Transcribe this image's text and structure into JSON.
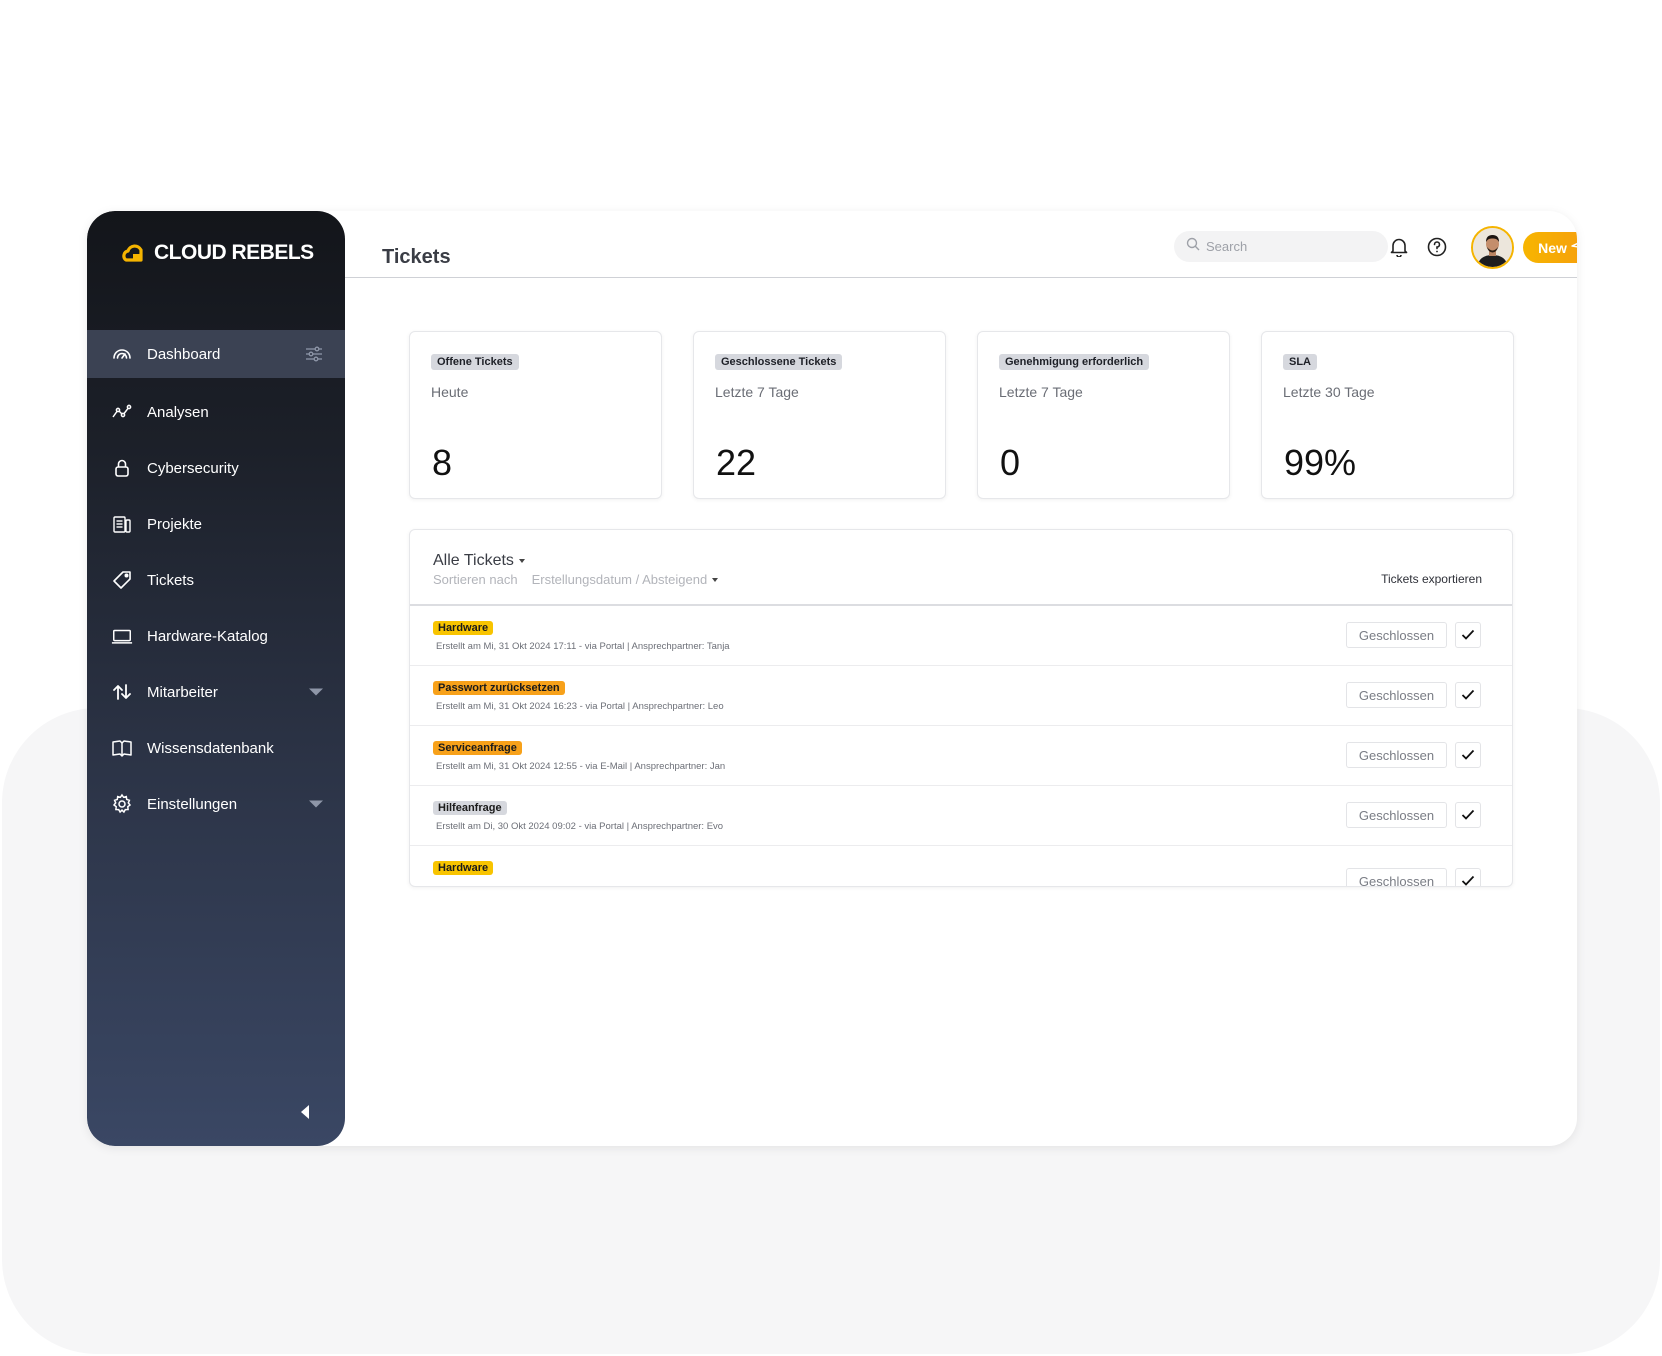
{
  "brand": {
    "name": "CLOUD REBELS",
    "accent": "#f5b400"
  },
  "page": {
    "title": "Tickets"
  },
  "header": {
    "search_placeholder": "Search",
    "new_label": "New"
  },
  "sidebar": {
    "items": [
      {
        "label": "Dashboard",
        "icon": "gauge-icon",
        "active": true
      },
      {
        "label": "Analysen",
        "icon": "chart-line-icon"
      },
      {
        "label": "Cybersecurity",
        "icon": "lock-icon"
      },
      {
        "label": "Projekte",
        "icon": "document-icon"
      },
      {
        "label": "Tickets",
        "icon": "ticket-icon"
      },
      {
        "label": "Hardware-Katalog",
        "icon": "laptop-icon"
      },
      {
        "label": "Mitarbeiter",
        "icon": "arrows-up-down-icon"
      },
      {
        "label": "Wissensdatenbank",
        "icon": "book-icon"
      },
      {
        "label": "Einstellungen",
        "icon": "gear-icon"
      }
    ]
  },
  "stats": [
    {
      "badge": "Offene Tickets",
      "period": "Heute",
      "value": "8"
    },
    {
      "badge": "Geschlossene Tickets",
      "period": "Letzte 7 Tage",
      "value": "22"
    },
    {
      "badge": "Genehmigung erforderlich",
      "period": "Letzte 7 Tage",
      "value": "0"
    },
    {
      "badge": "SLA",
      "period": "Letzte 30 Tage",
      "value": "99%"
    }
  ],
  "tickets": {
    "title": "Alle Tickets",
    "sort_label": "Sortieren nach",
    "sort_value": "Erstellungsdatum / Absteigend",
    "export_label": "Tickets exportieren",
    "rows": [
      {
        "category": "Hardware",
        "meta": "Erstellt am Mi, 31 Okt 2024  17:11 - via Portal   |   Ansprechpartner: Tanja",
        "status": "Geschlossen"
      },
      {
        "category": "Passwort zurücksetzen",
        "meta": "Erstellt am Mi, 31 Okt 2024  16:23 - via Portal   |   Ansprechpartner: Leo",
        "status": "Geschlossen"
      },
      {
        "category": "Serviceanfrage",
        "meta": "Erstellt am Mi, 31 Okt 2024  12:55 - via E-Mail   |   Ansprechpartner: Jan",
        "status": "Geschlossen"
      },
      {
        "category": "Hilfeanfrage",
        "meta": "Erstellt am Di, 30 Okt 2024  09:02 - via Portal   |   Ansprechpartner: Evo",
        "status": "Geschlossen"
      },
      {
        "category": "Hardware",
        "meta": "",
        "status": "Geschlossen"
      }
    ]
  }
}
